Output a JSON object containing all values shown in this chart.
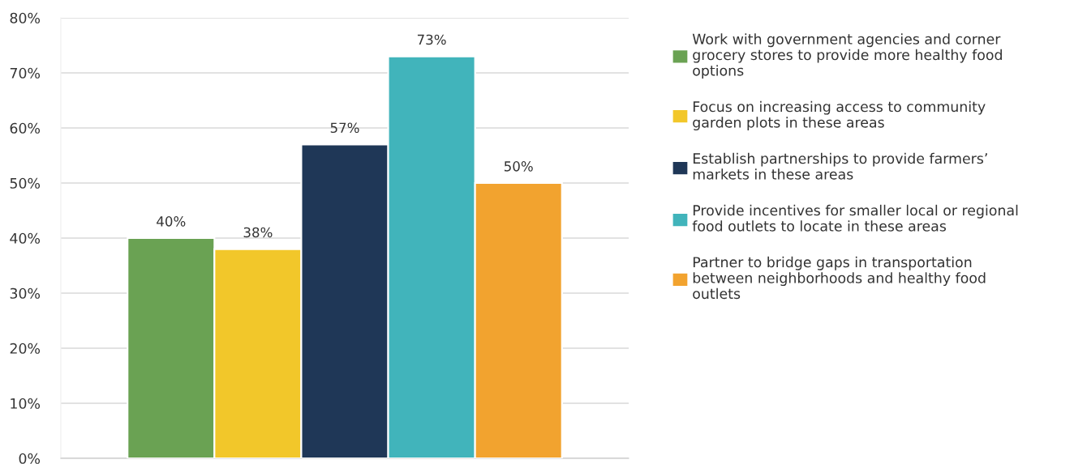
{
  "chart_data": {
    "type": "bar",
    "categories": [
      null
    ],
    "series": [
      {
        "name": "Work with government agencies and corner\ngrocery stores to provide more healthy food\noptions",
        "color": "#6aa253",
        "values": [
          40
        ],
        "value_labels": [
          "40%"
        ]
      },
      {
        "name": "Focus on increasing access to community\ngarden plots in these areas",
        "color": "#f2c72a",
        "values": [
          38
        ],
        "value_labels": [
          "38%"
        ]
      },
      {
        "name": "Establish partnerships to provide farmers’\nmarkets in these areas",
        "color": "#1f3757",
        "values": [
          57
        ],
        "value_labels": [
          "57%"
        ]
      },
      {
        "name": "Provide incentives for smaller local or regional\nfood outlets to locate in these areas",
        "color": "#41b4bb",
        "values": [
          73
        ],
        "value_labels": [
          "73%"
        ]
      },
      {
        "name": "Partner to bridge gaps in transportation\nbetween neighborhoods and healthy food\noutlets",
        "color": "#f2a32f",
        "values": [
          50
        ],
        "value_labels": [
          "50%"
        ]
      }
    ],
    "ylim": [
      0,
      80
    ],
    "yticks": [
      {
        "value": 0,
        "label": "0%"
      },
      {
        "value": 10,
        "label": "10%"
      },
      {
        "value": 20,
        "label": "20%"
      },
      {
        "value": 30,
        "label": "30%"
      },
      {
        "value": 40,
        "label": "40%"
      },
      {
        "value": 50,
        "label": "50%"
      },
      {
        "value": 60,
        "label": "60%"
      },
      {
        "value": 70,
        "label": "70%"
      },
      {
        "value": 80,
        "label": "80%"
      }
    ],
    "grid": "y",
    "legend": "right"
  }
}
